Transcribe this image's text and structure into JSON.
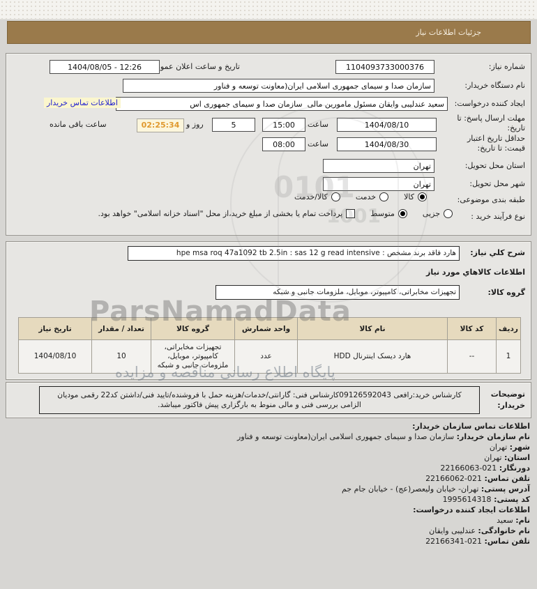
{
  "header": {
    "title": "جزئیات اطلاعات نیاز",
    "bg": "#9a7a4b"
  },
  "watermark": {
    "latin": "ParsNamadData",
    "persian": "پایگاه اطلاع رسانی مناقصه و مزایده",
    "digits1": "0101",
    "digits2": "1001"
  },
  "colors": {
    "accent_brown": "#9a7a4b",
    "countdown_text": "#e0992e",
    "link_blue": "#2020cf"
  },
  "section1": {
    "need_number_label": "شماره نیاز:",
    "need_number": "1104093733000376",
    "announce_label": "تاریخ و ساعت اعلان عمومی:",
    "announce_value": "1404/08/05 - 12:26",
    "buyer_org_label": "نام دستگاه خریدار:",
    "buyer_org_value": "سازمان صدا و سیمای جمهوری اسلامی ایران(معاونت توسعه و فناور",
    "creator_label": "ایجاد کننده درخواست:",
    "creator_value": "سعید عندلیبی وایقان مسئول مامورین مالی  سازمان صدا و سیمای جمهوری اس",
    "contact_link": "اطلاعات تماس خریدار",
    "deadline_label": "مهلت ارسال پاسخ: تا تاریخ:",
    "deadline_date": "1404/08/10",
    "hour_label": "ساعت",
    "deadline_time": "15:00",
    "days_value": "5",
    "days_and_label": "روز و",
    "countdown": "02:25:34",
    "remaining_label": "ساعت باقی مانده",
    "validity_label": "حداقل تاریخ اعتبار قیمت: تا تاریخ:",
    "validity_date": "1404/08/30",
    "validity_time": "08:00",
    "province_label": "استان محل تحویل:",
    "province_value": "تهران",
    "city_label": "شهر محل تحویل:",
    "city_value": "تهران",
    "classification_label": "طبقه بندی موضوعی:",
    "class_options": [
      {
        "label": "کالا",
        "checked": true
      },
      {
        "label": "خدمت",
        "checked": false
      },
      {
        "label": "کالا/خدمت",
        "checked": false
      }
    ],
    "process_label": "نوع فرآیند خرید :",
    "process_options": [
      {
        "label": "جزیی",
        "checked": false
      },
      {
        "label": "متوسط",
        "checked": true
      }
    ],
    "treasury_checkbox_label": "پرداخت تمام یا بخشی از مبلغ خرید،از محل \"اسناد خزانه اسلامی\" خواهد بود."
  },
  "section2": {
    "desc_label": "شرح کلي نیاز:",
    "desc_value": "هارد فاقد برند مشخص : hpe msa roq 47a1092 tb 2.5in : sas 12 g read intensive",
    "goods_info_heading": "اطلاعات کالاهاي مورد نیاز",
    "group_label": "گروه کالا:",
    "group_value": "تجهیزات مخابراتی، کامپیوتر، موبایل، ملزومات جانبی و شبکه",
    "table": {
      "headers": [
        "ردیف",
        "کد کالا",
        "نام کالا",
        "واحد شمارش",
        "گروه کالا",
        "تعداد / مقدار",
        "تاریخ نیاز"
      ],
      "rows": [
        [
          "1",
          "--",
          "هارد دیسک اینترنال HDD",
          "عدد",
          "تجهیزات مخابراتی، کامپیوتر، موبایل، ملزومات جانبی و شبکه",
          "10",
          "1404/08/10"
        ]
      ]
    }
  },
  "notes": {
    "label": "توضیحات خریدار:",
    "value": "کارشناس خرید:رافعی 09126592043کارشناس فنی: گارانتی/خدمات/هزینه حمل با فروشنده/تایید فنی/داشتن کد22 رقمی مودیان الزامی بررسی فنی و مالی منوط به بارگزاری پیش فاکتور میباشد."
  },
  "contact": {
    "heading": "اطلاعات تماس سازمان خریدار:",
    "lines": [
      {
        "label": "نام سازمان خریدار:",
        "value": "سازمان صدا و سیمای جمهوری اسلامی ایران(معاونت توسعه و فناور"
      },
      {
        "label": "شهر:",
        "value": "تهران"
      },
      {
        "label": "استان:",
        "value": "تهران"
      },
      {
        "label": "دورنگار:",
        "value": "22166063-021",
        "ltr": true
      },
      {
        "label": "تلفن تماس:",
        "value": "22166062-021",
        "ltr": true
      },
      {
        "label": "آدرس پستی:",
        "value": "تهران- خیابان ولیعصر(عج) - خیابان جام جم"
      },
      {
        "label": "کد پستی:",
        "value": "1995614318",
        "ltr": true
      }
    ],
    "creator_heading": "اطلاعات ایجاد کننده درخواست:",
    "creator_lines": [
      {
        "label": "نام:",
        "value": "سعید"
      },
      {
        "label": "نام خانوادگی:",
        "value": "عندلیبی وایقان"
      },
      {
        "label": "تلفن تماس:",
        "value": "22166341-021",
        "ltr": true
      }
    ]
  }
}
